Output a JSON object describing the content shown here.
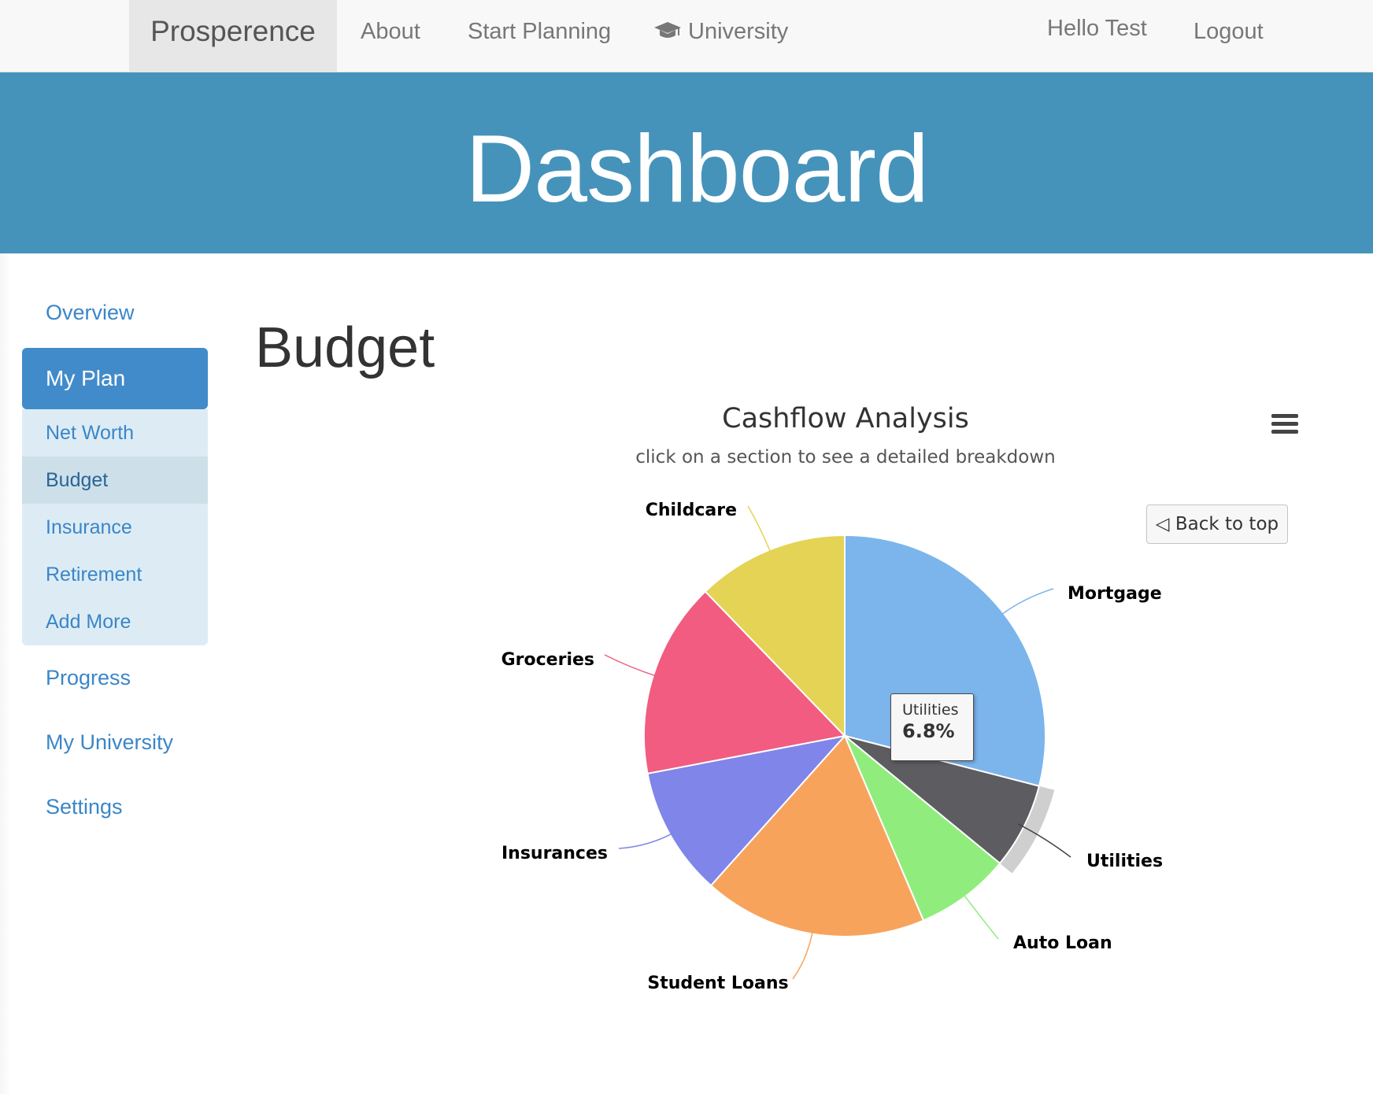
{
  "nav": {
    "brand": "Prosperence",
    "about": "About",
    "start_planning": "Start Planning",
    "university": "University",
    "university_icon": "graduation-cap-icon",
    "greeting": "Hello Test",
    "logout": "Logout"
  },
  "banner": {
    "title": "Dashboard",
    "color": "#4593ba"
  },
  "sidebar": {
    "overview": "Overview",
    "my_plan": "My Plan",
    "sub_items": [
      "Net Worth",
      "Budget",
      "Insurance",
      "Retirement",
      "Add More"
    ],
    "active_sub_item": "Budget",
    "progress": "Progress",
    "my_university": "My University",
    "settings": "Settings"
  },
  "main": {
    "title": "Budget"
  },
  "chart": {
    "menu_icon": "hamburger-menu-icon",
    "back_button": "◁ Back to top",
    "tooltip": {
      "name": "Utilities",
      "value": "6.8%"
    }
  },
  "chart_data": {
    "type": "pie",
    "title": "Cashflow Analysis",
    "subtitle": "click on a section to see a detailed breakdown",
    "start_angle_deg": 0,
    "direction": "clockwise",
    "highlighted": "Utilities",
    "slices": [
      {
        "name": "Mortgage",
        "value": 28.5,
        "color": "#7cb5ec"
      },
      {
        "name": "Utilities",
        "value": 6.8,
        "color": "#5c5c61"
      },
      {
        "name": "Auto Loan",
        "value": 7.5,
        "color": "#90ed7d"
      },
      {
        "name": "Student Loans",
        "value": 17.7,
        "color": "#f7a35c"
      },
      {
        "name": "Insurances",
        "value": 10.2,
        "color": "#8085e9"
      },
      {
        "name": "Groceries",
        "value": 15.5,
        "color": "#f15c80"
      },
      {
        "name": "Childcare",
        "value": 12.0,
        "color": "#e4d354"
      }
    ]
  }
}
